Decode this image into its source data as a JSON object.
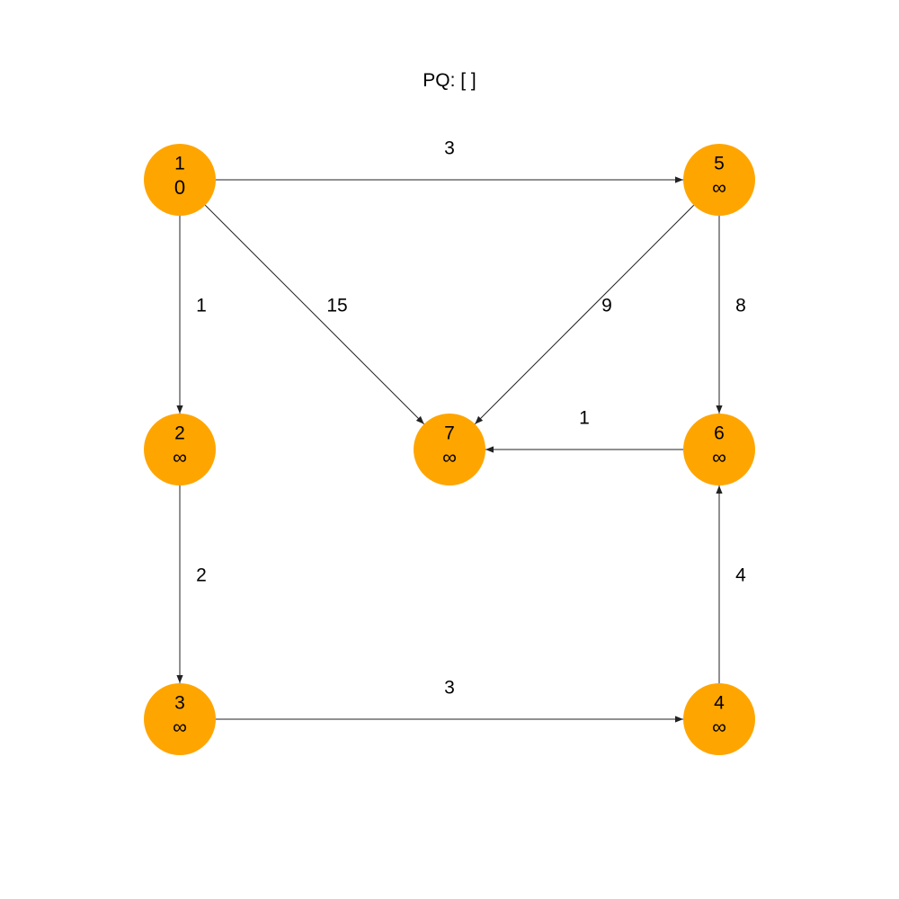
{
  "pq_label": "PQ: [ ]",
  "node_color": "#FFA500",
  "nodes": [
    {
      "id": "1",
      "dist": "0"
    },
    {
      "id": "2",
      "dist": "∞"
    },
    {
      "id": "3",
      "dist": "∞"
    },
    {
      "id": "4",
      "dist": "∞"
    },
    {
      "id": "5",
      "dist": "∞"
    },
    {
      "id": "6",
      "dist": "∞"
    },
    {
      "id": "7",
      "dist": "∞"
    }
  ],
  "edges": [
    {
      "from": "1",
      "to": "5",
      "weight": "3"
    },
    {
      "from": "1",
      "to": "2",
      "weight": "1"
    },
    {
      "from": "1",
      "to": "7",
      "weight": "15"
    },
    {
      "from": "5",
      "to": "7",
      "weight": "9"
    },
    {
      "from": "5",
      "to": "6",
      "weight": "8"
    },
    {
      "from": "6",
      "to": "7",
      "weight": "1"
    },
    {
      "from": "2",
      "to": "3",
      "weight": "2"
    },
    {
      "from": "4",
      "to": "6",
      "weight": "4"
    },
    {
      "from": "3",
      "to": "4",
      "weight": "3"
    }
  ]
}
